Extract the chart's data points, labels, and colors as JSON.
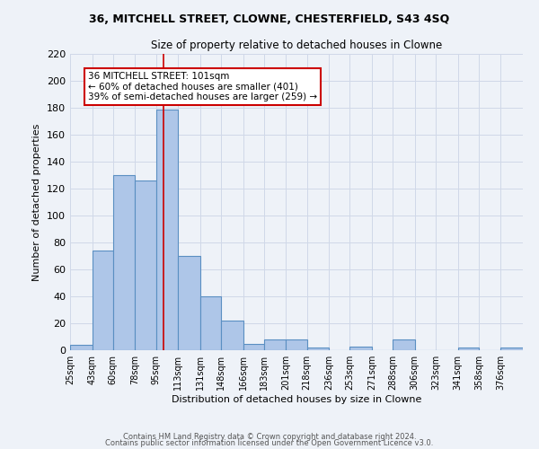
{
  "title_line1": "36, MITCHELL STREET, CLOWNE, CHESTERFIELD, S43 4SQ",
  "title_line2": "Size of property relative to detached houses in Clowne",
  "xlabel": "Distribution of detached houses by size in Clowne",
  "ylabel": "Number of detached properties",
  "bin_labels": [
    "25sqm",
    "43sqm",
    "60sqm",
    "78sqm",
    "95sqm",
    "113sqm",
    "131sqm",
    "148sqm",
    "166sqm",
    "183sqm",
    "201sqm",
    "218sqm",
    "236sqm",
    "253sqm",
    "271sqm",
    "288sqm",
    "306sqm",
    "323sqm",
    "341sqm",
    "358sqm",
    "376sqm"
  ],
  "bin_edges": [
    25,
    43,
    60,
    78,
    95,
    113,
    131,
    148,
    166,
    183,
    201,
    218,
    236,
    253,
    271,
    288,
    306,
    323,
    341,
    358,
    376
  ],
  "bar_heights": [
    4,
    74,
    130,
    126,
    179,
    70,
    40,
    22,
    5,
    8,
    8,
    2,
    0,
    3,
    0,
    8,
    0,
    0,
    2,
    0,
    2
  ],
  "bar_color": "#aec6e8",
  "bar_edge_color": "#5a8fc2",
  "grid_color": "#d0d8e8",
  "background_color": "#eef2f8",
  "red_line_x": 101,
  "annotation_title": "36 MITCHELL STREET: 101sqm",
  "annotation_line1": "← 60% of detached houses are smaller (401)",
  "annotation_line2": "39% of semi-detached houses are larger (259) →",
  "annotation_box_color": "#ffffff",
  "annotation_box_edge": "#cc0000",
  "red_line_color": "#cc0000",
  "ylim": [
    0,
    220
  ],
  "yticks": [
    0,
    20,
    40,
    60,
    80,
    100,
    120,
    140,
    160,
    180,
    200,
    220
  ],
  "footnote1": "Contains HM Land Registry data © Crown copyright and database right 2024.",
  "footnote2": "Contains public sector information licensed under the Open Government Licence v3.0."
}
